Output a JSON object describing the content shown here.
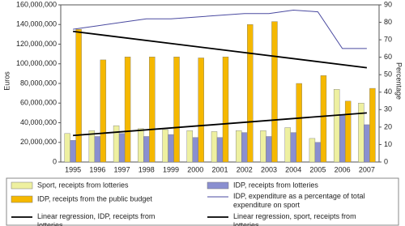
{
  "chart_data": {
    "type": "bar",
    "y_label": "Euros",
    "y2_label": "Percentage",
    "categories": [
      "1995",
      "1996",
      "1997",
      "1998",
      "1999",
      "2000",
      "2001",
      "2002",
      "2003",
      "2004",
      "2005",
      "2006",
      "2007"
    ],
    "series": [
      {
        "name": "Sport, receipts from lotteries",
        "color": "#eef0a0",
        "values": [
          29000000,
          32000000,
          37000000,
          34000000,
          33000000,
          32000000,
          31000000,
          32000000,
          32000000,
          35000000,
          24000000,
          74000000,
          60000000
        ]
      },
      {
        "name": "IDP, receipts from lotteries",
        "color": "#8a8fd0",
        "values": [
          22000000,
          26000000,
          29000000,
          26000000,
          28000000,
          25000000,
          25000000,
          30000000,
          26000000,
          30000000,
          20000000,
          48000000,
          38000000
        ]
      },
      {
        "name": "IDP, receipts from the public budget",
        "color": "#f5b800",
        "values": [
          135000000,
          104000000,
          107000000,
          107000000,
          107000000,
          106000000,
          107000000,
          140000000,
          143000000,
          80000000,
          88000000,
          62000000,
          75000000
        ]
      },
      {
        "name": "IDP, expenditure as a percentage of total expenditure on sport",
        "type": "line",
        "axis": "y2",
        "color": "#4a4aa0",
        "values": [
          76,
          78,
          80,
          82,
          82,
          83,
          84,
          85,
          85,
          87,
          86,
          65,
          65
        ]
      },
      {
        "name": "Linear regression, IDP, receipts from lotteries",
        "type": "line",
        "color": "#000000",
        "x": [
          "1995",
          "2007"
        ],
        "values": [
          133000000,
          96000000
        ]
      },
      {
        "name": "Linear regression, sport, receipts from lotteries",
        "type": "line",
        "color": "#000000",
        "x": [
          "1995",
          "2007"
        ],
        "values": [
          27000000,
          50000000
        ]
      }
    ],
    "ylim": [
      0,
      160000000
    ],
    "yticks": [
      {
        "value": 0,
        "label": "0"
      },
      {
        "value": 20000000,
        "label": "20,000,000"
      },
      {
        "value": 40000000,
        "label": "40,000,000"
      },
      {
        "value": 60000000,
        "label": "60,000,000"
      },
      {
        "value": 80000000,
        "label": "80,000,000"
      },
      {
        "value": 100000000,
        "label": "100,000,000"
      },
      {
        "value": 120000000,
        "label": "120,000,000"
      },
      {
        "value": 140000000,
        "label": "140,000,000"
      },
      {
        "value": 160000000,
        "label": "160,000,000"
      }
    ],
    "y2lim": [
      0,
      90
    ],
    "y2ticks": [
      0,
      10,
      20,
      30,
      40,
      50,
      60,
      70,
      80,
      90
    ]
  }
}
